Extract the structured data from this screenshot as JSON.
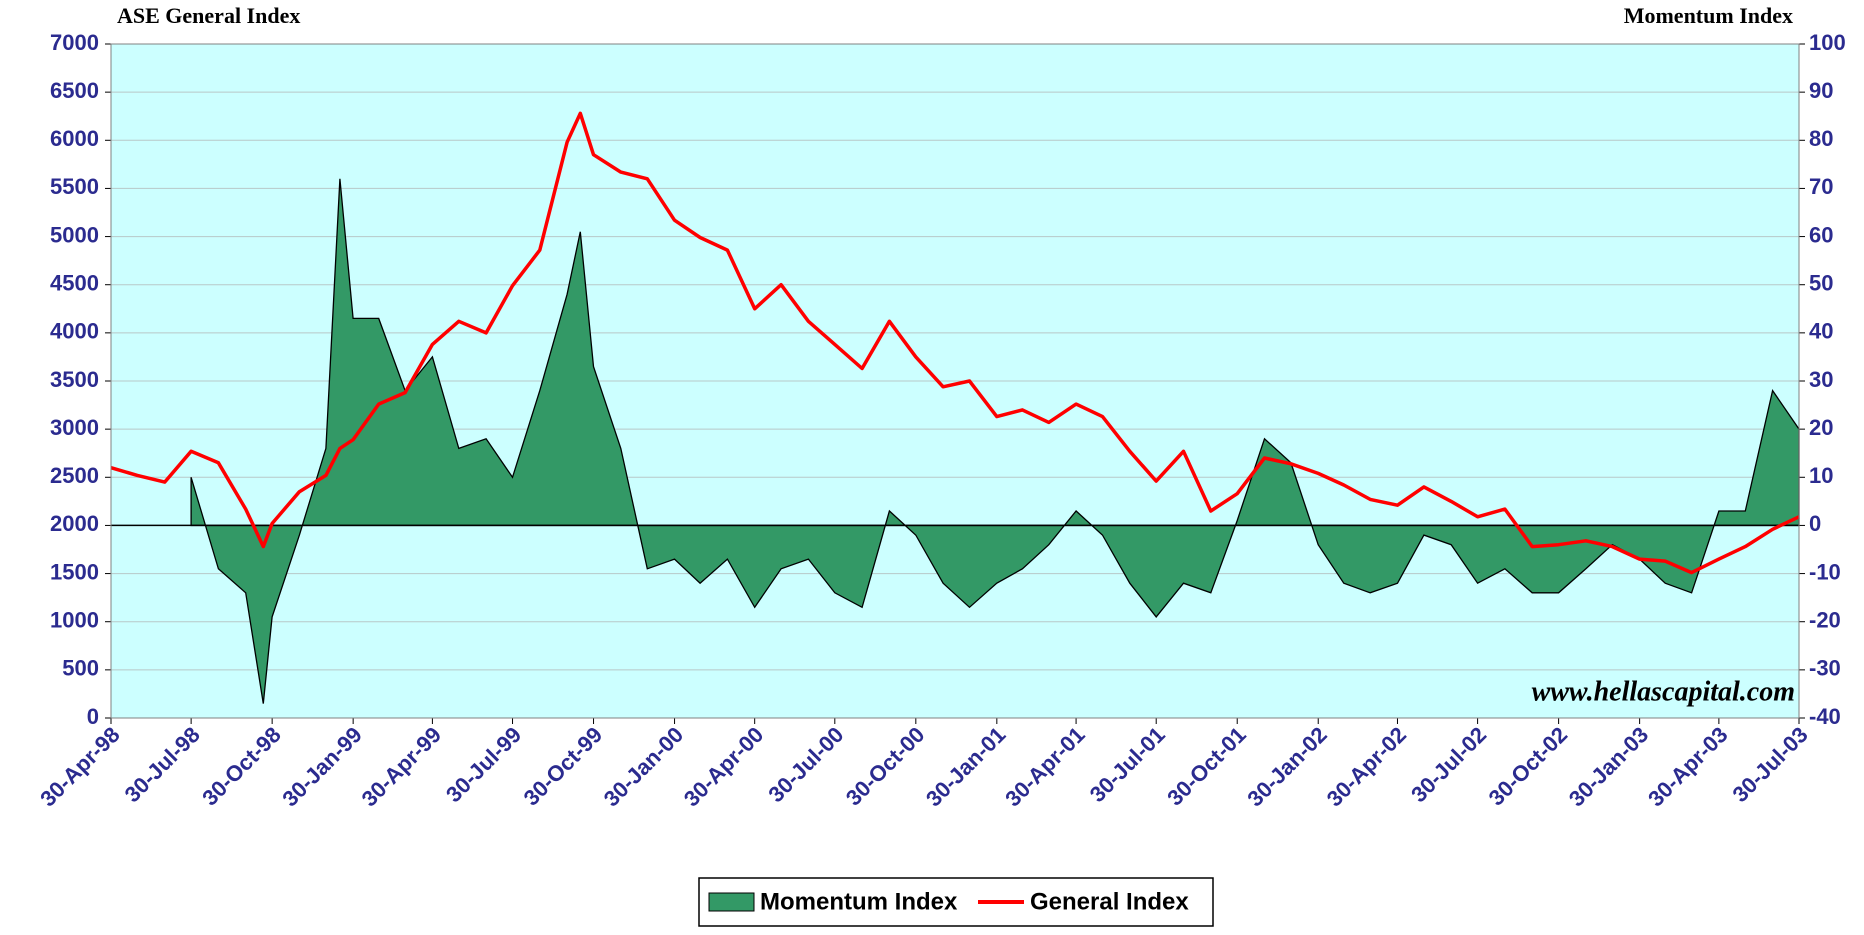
{
  "chart_data": {
    "type": "line-area",
    "ylabel": "ASE General Index",
    "y2label": "Momentum Index",
    "annotation": "www.hellascapital.com",
    "x": [
      "1998-04-30",
      "1998-05-30",
      "1998-06-30",
      "1998-07-30",
      "1998-08-30",
      "1998-09-30",
      "1998-10-20",
      "1998-10-30",
      "1998-11-30",
      "1998-12-30",
      "1999-01-15",
      "1999-01-30",
      "1999-02-28",
      "1999-03-30",
      "1999-04-30",
      "1999-05-30",
      "1999-06-30",
      "1999-07-30",
      "1999-08-30",
      "1999-09-30",
      "1999-10-15",
      "1999-10-30",
      "1999-11-30",
      "1999-12-30",
      "2000-01-30",
      "2000-02-28",
      "2000-03-30",
      "2000-04-30",
      "2000-05-30",
      "2000-06-30",
      "2000-07-30",
      "2000-08-30",
      "2000-09-30",
      "2000-10-30",
      "2000-11-30",
      "2000-12-30",
      "2001-01-30",
      "2001-02-28",
      "2001-03-30",
      "2001-04-30",
      "2001-05-30",
      "2001-06-30",
      "2001-07-30",
      "2001-08-30",
      "2001-09-30",
      "2001-10-30",
      "2001-11-30",
      "2001-12-30",
      "2002-01-30",
      "2002-02-28",
      "2002-03-30",
      "2002-04-30",
      "2002-05-30",
      "2002-06-30",
      "2002-07-30",
      "2002-08-30",
      "2002-09-30",
      "2002-10-30",
      "2002-11-30",
      "2002-12-30",
      "2003-01-30",
      "2003-02-28",
      "2003-03-30",
      "2003-04-30",
      "2003-05-30",
      "2003-06-30",
      "2003-07-30"
    ],
    "series": [
      {
        "name": "Momentum Index",
        "color": "#339966",
        "axis": "y2",
        "fill": true,
        "values": [
          null,
          null,
          null,
          10,
          -9,
          -14,
          -37,
          -19,
          -2,
          16,
          72,
          43,
          43,
          28,
          35,
          16,
          18,
          10,
          28,
          48,
          61,
          33,
          16,
          -9,
          -7,
          -12,
          -7,
          -17,
          -9,
          -7,
          -14,
          -17,
          3,
          -2,
          -12,
          -17,
          -12,
          -9,
          -4,
          3,
          -2,
          -12,
          -19,
          -12,
          -14,
          1,
          18,
          13,
          -4,
          -12,
          -14,
          -12,
          -2,
          -4,
          -12,
          -9,
          -14,
          -14,
          -9,
          -4,
          -7,
          -12,
          -14,
          3,
          3,
          28,
          20
        ]
      },
      {
        "name": "General Index",
        "color": "#ff0000",
        "values": [
          2600,
          2520,
          2450,
          2770,
          2650,
          2170,
          1780,
          2020,
          2350,
          2520,
          2800,
          2890,
          3260,
          3380,
          3880,
          4120,
          4000,
          4490,
          4860,
          5980,
          6280,
          5850,
          5670,
          5600,
          5170,
          4990,
          4860,
          4250,
          4500,
          4120,
          3880,
          3630,
          4120,
          3750,
          3440,
          3500,
          3130,
          3200,
          3070,
          3260,
          3130,
          2770,
          2460,
          2770,
          2150,
          2330,
          2700,
          2640,
          2540,
          2420,
          2270,
          2210,
          2400,
          2250,
          2090,
          2170,
          1780,
          1800,
          1840,
          1780,
          1650,
          1630,
          1510,
          1650,
          1780,
          1960,
          2090
        ]
      }
    ],
    "xlim": [
      "1998-04-30",
      "2003-07-30"
    ],
    "xticks": [
      {
        "value": "1998-04-30",
        "label": "30-Apr-98"
      },
      {
        "value": "1998-07-30",
        "label": "30-Jul-98"
      },
      {
        "value": "1998-10-30",
        "label": "30-Oct-98"
      },
      {
        "value": "1999-01-30",
        "label": "30-Jan-99"
      },
      {
        "value": "1999-04-30",
        "label": "30-Apr-99"
      },
      {
        "value": "1999-07-30",
        "label": "30-Jul-99"
      },
      {
        "value": "1999-10-30",
        "label": "30-Oct-99"
      },
      {
        "value": "2000-01-30",
        "label": "30-Jan-00"
      },
      {
        "value": "2000-04-30",
        "label": "30-Apr-00"
      },
      {
        "value": "2000-07-30",
        "label": "30-Jul-00"
      },
      {
        "value": "2000-10-30",
        "label": "30-Oct-00"
      },
      {
        "value": "2001-01-30",
        "label": "30-Jan-01"
      },
      {
        "value": "2001-04-30",
        "label": "30-Apr-01"
      },
      {
        "value": "2001-07-30",
        "label": "30-Jul-01"
      },
      {
        "value": "2001-10-30",
        "label": "30-Oct-01"
      },
      {
        "value": "2002-01-30",
        "label": "30-Jan-02"
      },
      {
        "value": "2002-04-30",
        "label": "30-Apr-02"
      },
      {
        "value": "2002-07-30",
        "label": "30-Jul-02"
      },
      {
        "value": "2002-10-30",
        "label": "30-Oct-02"
      },
      {
        "value": "2003-01-30",
        "label": "30-Jan-03"
      },
      {
        "value": "2003-04-30",
        "label": "30-Apr-03"
      },
      {
        "value": "2003-07-30",
        "label": "30-Jul-03"
      }
    ],
    "ylim": [
      0,
      7000
    ],
    "yticks": [
      0,
      500,
      1000,
      1500,
      2000,
      2500,
      3000,
      3500,
      4000,
      4500,
      5000,
      5500,
      6000,
      6500,
      7000
    ],
    "y2lim": [
      -40,
      100
    ],
    "y2ticks": [
      -40,
      -30,
      -20,
      -10,
      0,
      10,
      20,
      30,
      40,
      50,
      60,
      70,
      80,
      90,
      100
    ],
    "grid": true,
    "legend": "bottom"
  }
}
